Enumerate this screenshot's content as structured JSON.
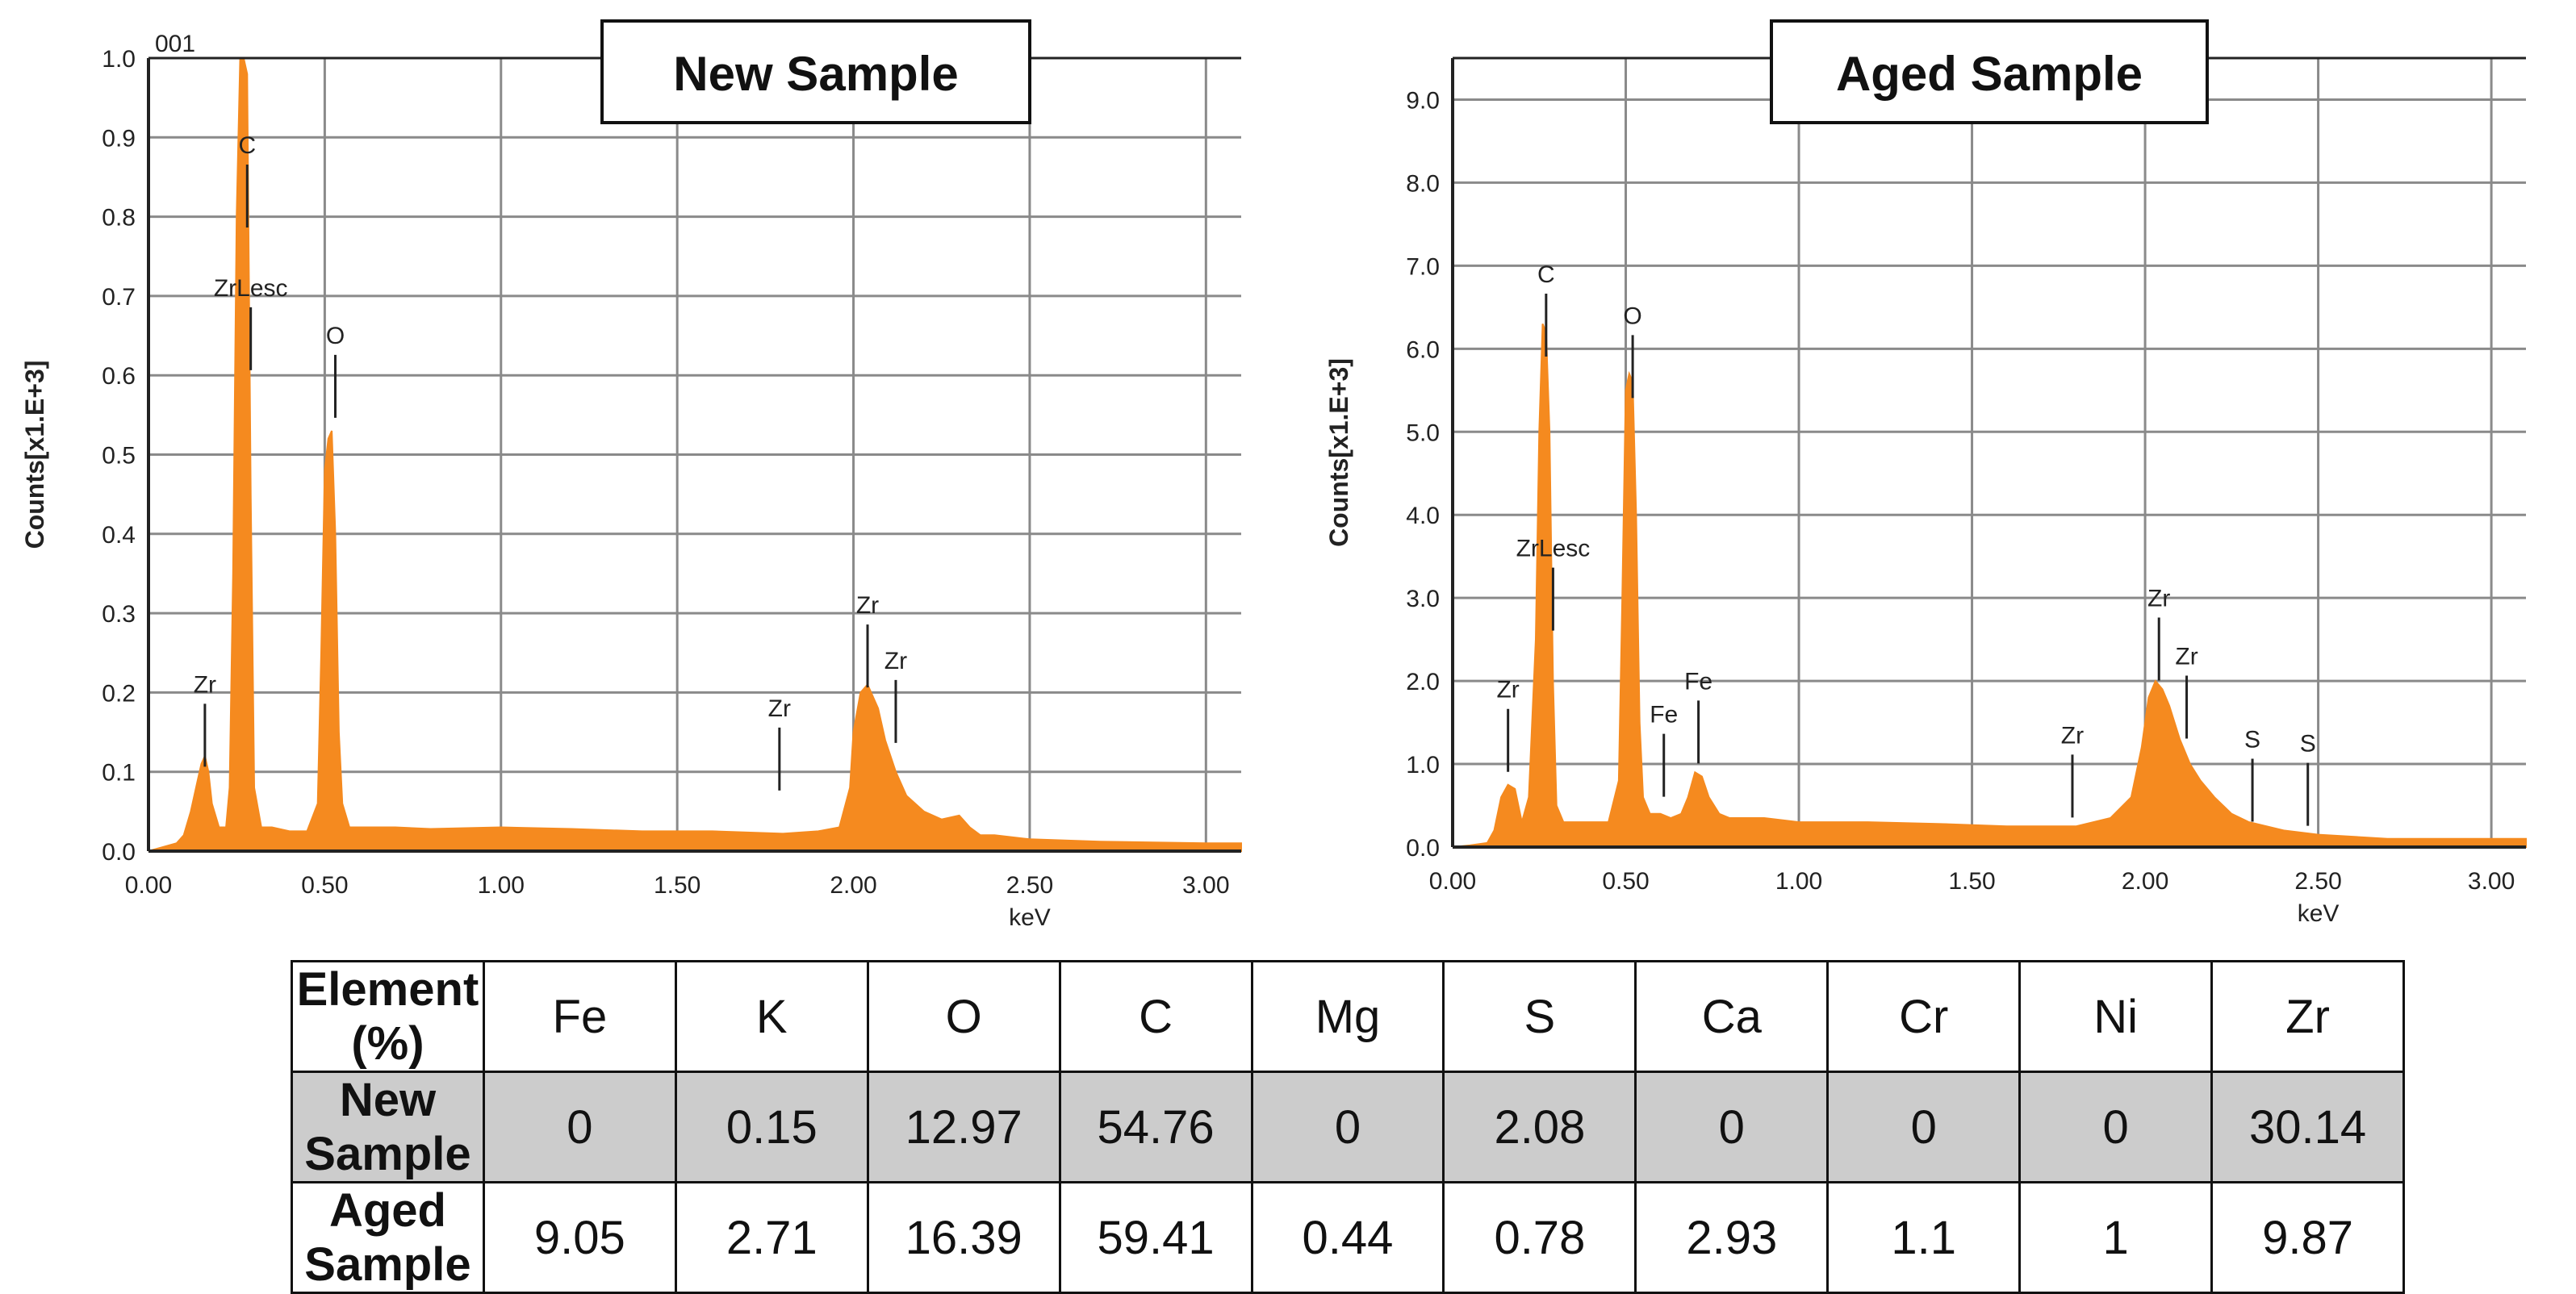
{
  "colors": {
    "spectrum": "#f58a1f",
    "grid": "#8a8a8a",
    "axis": "#222222"
  },
  "chart_data": [
    {
      "type": "area",
      "title": "New Sample",
      "corner_label": "001",
      "xlabel": "keV",
      "ylabel": "Counts[x1.E+3]",
      "xlim": [
        0,
        3.1
      ],
      "ylim": [
        0,
        1.0
      ],
      "x_ticks": [
        0,
        0.5,
        1.0,
        1.5,
        2.0,
        2.5,
        3.0
      ],
      "x_tick_labels": [
        "0.00",
        "0.50",
        "1.00",
        "1.50",
        "2.00",
        "2.50",
        "3.00"
      ],
      "y_ticks": [
        0,
        0.1,
        0.2,
        0.3,
        0.4,
        0.5,
        0.6,
        0.7,
        0.8,
        0.9,
        1.0
      ],
      "y_tick_labels": [
        "0.0",
        "0.1",
        "0.2",
        "0.3",
        "0.4",
        "0.5",
        "0.6",
        "0.7",
        "0.8",
        "0.9",
        "1.0"
      ],
      "series": [
        {
          "name": "spectrum",
          "x": [
            0.0,
            0.04,
            0.08,
            0.1,
            0.12,
            0.14,
            0.15,
            0.16,
            0.17,
            0.18,
            0.2,
            0.22,
            0.23,
            0.24,
            0.25,
            0.26,
            0.27,
            0.28,
            0.29,
            0.3,
            0.32,
            0.35,
            0.4,
            0.45,
            0.48,
            0.49,
            0.5,
            0.51,
            0.52,
            0.53,
            0.54,
            0.55,
            0.57,
            0.6,
            0.7,
            0.8,
            1.0,
            1.2,
            1.4,
            1.6,
            1.8,
            1.9,
            1.96,
            1.99,
            2.0,
            2.02,
            2.04,
            2.05,
            2.07,
            2.09,
            2.12,
            2.15,
            2.2,
            2.25,
            2.3,
            2.33,
            2.36,
            2.4,
            2.5,
            2.7,
            3.0,
            3.1
          ],
          "y": [
            0.0,
            0.005,
            0.01,
            0.02,
            0.05,
            0.09,
            0.11,
            0.12,
            0.1,
            0.06,
            0.03,
            0.03,
            0.08,
            0.35,
            0.8,
            1.0,
            1.0,
            0.98,
            0.45,
            0.08,
            0.03,
            0.03,
            0.025,
            0.025,
            0.06,
            0.25,
            0.48,
            0.52,
            0.53,
            0.4,
            0.15,
            0.06,
            0.03,
            0.03,
            0.03,
            0.028,
            0.03,
            0.028,
            0.025,
            0.025,
            0.022,
            0.025,
            0.03,
            0.08,
            0.15,
            0.2,
            0.21,
            0.2,
            0.18,
            0.14,
            0.1,
            0.07,
            0.05,
            0.04,
            0.045,
            0.03,
            0.02,
            0.02,
            0.015,
            0.012,
            0.01,
            0.01
          ]
        }
      ],
      "annotations": [
        {
          "label": "Zr",
          "x": 0.16,
          "y": 0.2
        },
        {
          "label": "C",
          "x": 0.28,
          "y": 0.88
        },
        {
          "label": "ZrLesc",
          "x": 0.29,
          "y": 0.7
        },
        {
          "label": "O",
          "x": 0.53,
          "y": 0.64
        },
        {
          "label": "Zr",
          "x": 1.79,
          "y": 0.17
        },
        {
          "label": "Zr",
          "x": 2.04,
          "y": 0.3
        },
        {
          "label": "Zr",
          "x": 2.12,
          "y": 0.23
        }
      ]
    },
    {
      "type": "area",
      "title": "Aged Sample",
      "corner_label": "",
      "xlabel": "keV",
      "ylabel": "Counts[x1.E+3]",
      "xlim": [
        0,
        3.1
      ],
      "ylim": [
        0,
        9.5
      ],
      "x_ticks": [
        0,
        0.5,
        1.0,
        1.5,
        2.0,
        2.5,
        3.0
      ],
      "x_tick_labels": [
        "0.00",
        "0.50",
        "1.00",
        "1.50",
        "2.00",
        "2.50",
        "3.00"
      ],
      "y_ticks": [
        0,
        1,
        2,
        3,
        4,
        5,
        6,
        7,
        8,
        9
      ],
      "y_tick_labels": [
        "0.0",
        "1.0",
        "2.0",
        "3.0",
        "4.0",
        "5.0",
        "6.0",
        "7.0",
        "8.0",
        "9.0"
      ],
      "series": [
        {
          "name": "spectrum",
          "x": [
            0.0,
            0.05,
            0.1,
            0.12,
            0.14,
            0.16,
            0.18,
            0.2,
            0.22,
            0.24,
            0.25,
            0.26,
            0.27,
            0.28,
            0.29,
            0.3,
            0.32,
            0.35,
            0.4,
            0.45,
            0.48,
            0.49,
            0.5,
            0.51,
            0.52,
            0.53,
            0.54,
            0.55,
            0.57,
            0.6,
            0.63,
            0.66,
            0.68,
            0.7,
            0.72,
            0.74,
            0.77,
            0.8,
            0.9,
            1.0,
            1.2,
            1.4,
            1.6,
            1.8,
            1.9,
            1.96,
            1.99,
            2.01,
            2.03,
            2.05,
            2.07,
            2.1,
            2.13,
            2.16,
            2.2,
            2.25,
            2.3,
            2.4,
            2.5,
            2.7,
            3.0,
            3.1
          ],
          "y": [
            0.0,
            0.02,
            0.05,
            0.2,
            0.6,
            0.75,
            0.7,
            0.3,
            0.6,
            2.5,
            5.0,
            6.3,
            6.2,
            5.0,
            2.0,
            0.5,
            0.3,
            0.3,
            0.3,
            0.3,
            0.8,
            3.0,
            5.5,
            5.7,
            5.6,
            4.0,
            1.5,
            0.6,
            0.4,
            0.4,
            0.35,
            0.4,
            0.6,
            0.9,
            0.85,
            0.6,
            0.4,
            0.35,
            0.35,
            0.3,
            0.3,
            0.28,
            0.25,
            0.25,
            0.35,
            0.6,
            1.2,
            1.8,
            2.0,
            1.9,
            1.7,
            1.3,
            1.0,
            0.8,
            0.6,
            0.4,
            0.3,
            0.2,
            0.15,
            0.1,
            0.1,
            0.1
          ]
        }
      ],
      "annotations": [
        {
          "label": "Zr",
          "x": 0.16,
          "y": 1.8
        },
        {
          "label": "C",
          "x": 0.27,
          "y": 6.8
        },
        {
          "label": "ZrLesc",
          "x": 0.29,
          "y": 3.5
        },
        {
          "label": "O",
          "x": 0.52,
          "y": 6.3
        },
        {
          "label": "Fe",
          "x": 0.61,
          "y": 1.5
        },
        {
          "label": "Fe",
          "x": 0.71,
          "y": 1.9
        },
        {
          "label": "Zr",
          "x": 1.79,
          "y": 1.25
        },
        {
          "label": "Zr",
          "x": 2.04,
          "y": 2.9
        },
        {
          "label": "Zr",
          "x": 2.12,
          "y": 2.2
        },
        {
          "label": "S",
          "x": 2.31,
          "y": 1.2
        },
        {
          "label": "S",
          "x": 2.47,
          "y": 1.15
        }
      ]
    }
  ],
  "table": {
    "headers": [
      "Element (%)",
      "Fe",
      "K",
      "O",
      "C",
      "Mg",
      "S",
      "Ca",
      "Cr",
      "Ni",
      "Zr"
    ],
    "rows": [
      {
        "label": "New Sample",
        "values": [
          "0",
          "0.15",
          "12.97",
          "54.76",
          "0",
          "2.08",
          "0",
          "0",
          "0",
          "30.14"
        ]
      },
      {
        "label": "Aged Sample",
        "values": [
          "9.05",
          "2.71",
          "16.39",
          "59.41",
          "0.44",
          "0.78",
          "2.93",
          "1.1",
          "1",
          "9.87"
        ]
      }
    ]
  }
}
